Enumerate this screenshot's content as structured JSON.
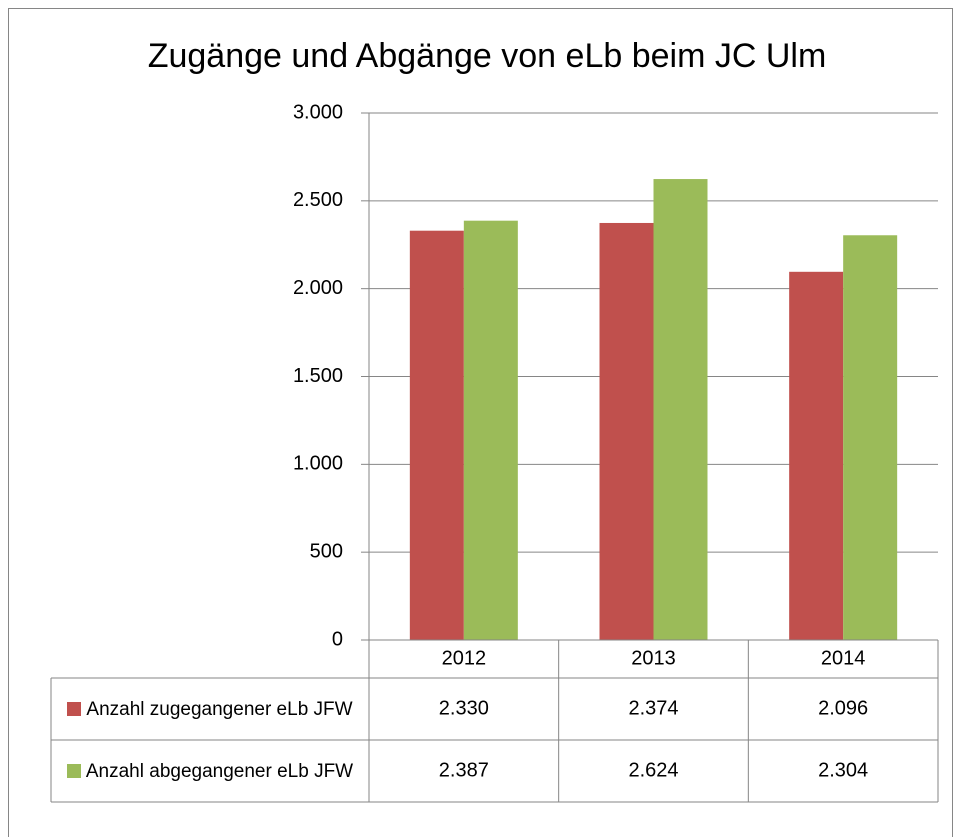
{
  "chart_data": {
    "type": "bar",
    "title": "Zugänge und Abgänge von eLb beim JC Ulm",
    "categories": [
      "2012",
      "2013",
      "2014"
    ],
    "series": [
      {
        "name": "Anzahl zugegangener eLb JFW",
        "color": "#c0504d",
        "values": [
          2330,
          2374,
          2096
        ],
        "value_labels": [
          "2.330",
          "2.374",
          "2.096"
        ]
      },
      {
        "name": "Anzahl abgegangener eLb JFW",
        "color": "#9bbb59",
        "values": [
          2387,
          2624,
          2304
        ],
        "value_labels": [
          "2.387",
          "2.624",
          "2.304"
        ]
      }
    ],
    "ylim": [
      0,
      3000
    ],
    "yticks": [
      0,
      500,
      {
        "value": 1000,
        "label": "1.000"
      },
      {
        "value": 1500,
        "label": "1.500"
      },
      {
        "value": 2000,
        "label": "2.000"
      },
      {
        "value": 2500,
        "label": "2.500"
      },
      {
        "value": 3000,
        "label": "3.000"
      }
    ],
    "grid": true,
    "data_table": true
  }
}
